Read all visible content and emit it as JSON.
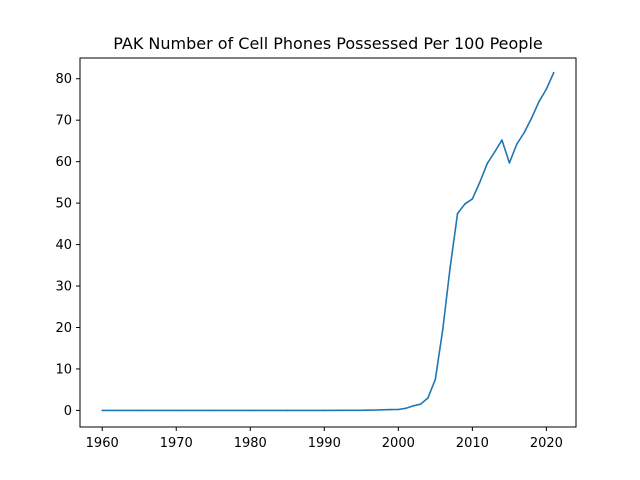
{
  "chart_data": {
    "type": "line",
    "title": "PAK Number of Cell Phones Possessed Per 100 People",
    "xlabel": "",
    "ylabel": "",
    "xlim": [
      1957,
      2024
    ],
    "ylim": [
      -4,
      85
    ],
    "x_ticks": [
      1960,
      1970,
      1980,
      1990,
      2000,
      2010,
      2020
    ],
    "y_ticks": [
      0,
      10,
      20,
      30,
      40,
      50,
      60,
      70,
      80
    ],
    "grid": false,
    "line_color": "#1f77b4",
    "series": [
      {
        "x": [
          1960,
          1965,
          1970,
          1975,
          1980,
          1985,
          1990,
          1993,
          1995,
          1996,
          1997,
          1998,
          1999,
          2000,
          2001,
          2002,
          2003,
          2004,
          2005,
          2006,
          2007,
          2008,
          2009,
          2010,
          2011,
          2012,
          2013,
          2014,
          2015,
          2016,
          2017,
          2018,
          2019,
          2020,
          2021
        ],
        "y": [
          0,
          0,
          0,
          0,
          0,
          0,
          0,
          0.02,
          0.03,
          0.05,
          0.1,
          0.15,
          0.2,
          0.22,
          0.5,
          1.1,
          1.5,
          3.0,
          7.5,
          19.5,
          34.5,
          47.5,
          49.8,
          51.0,
          55.0,
          59.5,
          62.3,
          65.2,
          59.7,
          64.2,
          67.0,
          70.5,
          74.5,
          77.5,
          81.5
        ]
      }
    ]
  }
}
